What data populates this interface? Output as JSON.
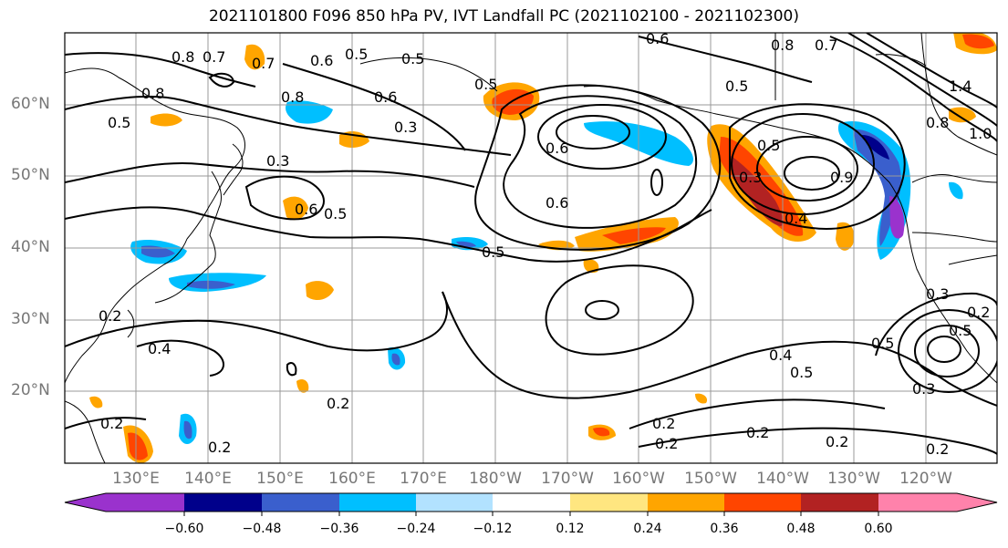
{
  "title": "2021101800 F096 850 hPa PV, IVT Landfall PC (2021102100 - 2021102300)",
  "lat_labels": [
    "60°N",
    "50°N",
    "40°N",
    "30°N",
    "20°N"
  ],
  "lon_labels": [
    "130°E",
    "140°E",
    "150°E",
    "160°E",
    "170°E",
    "180°W",
    "170°W",
    "160°W",
    "150°W",
    "140°W",
    "130°W",
    "120°W"
  ],
  "colorbar": {
    "tick_labels": [
      "−0.60",
      "−0.48",
      "−0.36",
      "−0.24",
      "−0.12",
      "0.12",
      "0.24",
      "0.36",
      "0.48",
      "0.60"
    ],
    "colors": [
      "#9a32cd",
      "#00008b",
      "#3a5fcd",
      "#00bfff",
      "#b2e2ff",
      "#ffffff",
      "#ffe680",
      "#ffa500",
      "#ff4500",
      "#b22222",
      "#ff82ab"
    ]
  },
  "contour_labels": [
    "0.8",
    "0.7",
    "0.7",
    "0.6",
    "0.5",
    "0.5",
    "0.8",
    "0.6",
    "0.8",
    "0.5",
    "0.6",
    "0.5",
    "0.3",
    "0.3",
    "0.6",
    "0.5",
    "0.6",
    "0.5",
    "0.6",
    "0.8",
    "0.7",
    "0.5",
    "0.3",
    "0.4",
    "0.9",
    "0.5",
    "0.4",
    "0.5",
    "0.4",
    "0.5",
    "0.3",
    "0.2",
    "0.2",
    "0.2",
    "0.2",
    "0.2",
    "0.2",
    "0.2",
    "0.2",
    "0.2",
    "0.2",
    "1.0",
    "1.4",
    "0.8",
    "0.3",
    "0.5"
  ]
}
